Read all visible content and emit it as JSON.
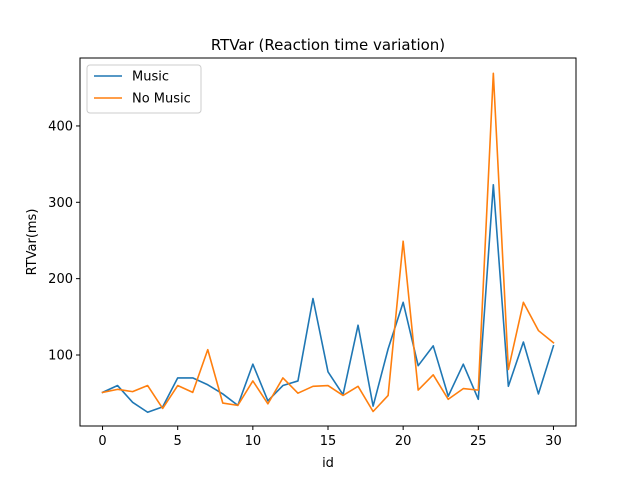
{
  "chart_data": {
    "type": "line",
    "title": "RTVar (Reaction time variation)",
    "xlabel": "id",
    "ylabel": "RTVar(ms)",
    "xlim": [
      -1.5,
      31.5
    ],
    "ylim": [
      7,
      489
    ],
    "x_ticks": [
      0,
      5,
      10,
      15,
      20,
      25,
      30
    ],
    "y_ticks": [
      100,
      200,
      300,
      400
    ],
    "grid": false,
    "legend_position": "upper left",
    "x": [
      0,
      1,
      2,
      3,
      4,
      5,
      6,
      7,
      8,
      9,
      10,
      11,
      12,
      13,
      14,
      15,
      16,
      17,
      18,
      19,
      20,
      21,
      22,
      23,
      24,
      25,
      26,
      27,
      28,
      29,
      30
    ],
    "series": [
      {
        "name": "Music",
        "color": "#1f77b4",
        "values": [
          51,
          60,
          38,
          25,
          32,
          70,
          70,
          61,
          49,
          34,
          88,
          40,
          60,
          66,
          174,
          78,
          48,
          139,
          33,
          108,
          169,
          86,
          112,
          46,
          88,
          42,
          323,
          59,
          117,
          49,
          112
        ]
      },
      {
        "name": "No Music",
        "color": "#ff7f0e",
        "values": [
          51,
          55,
          52,
          60,
          30,
          60,
          51,
          107,
          37,
          34,
          66,
          36,
          70,
          50,
          59,
          60,
          47,
          59,
          26,
          47,
          249,
          54,
          74,
          42,
          56,
          54,
          469,
          81,
          169,
          132,
          116
        ]
      }
    ]
  }
}
